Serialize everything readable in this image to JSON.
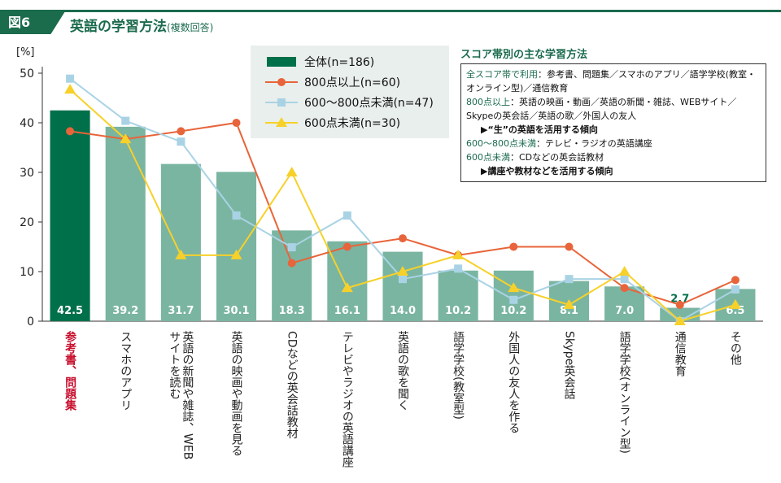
{
  "figure": {
    "tag": "図6",
    "title": "英語の学習方法",
    "subtitle": "(複数回答)"
  },
  "legend": {
    "items": [
      {
        "label": "全体(n=186)",
        "color": "#00704a",
        "marker": "bar"
      },
      {
        "label": "800点以上(n=60)",
        "color": "#e8643a",
        "marker": "circle"
      },
      {
        "label": "600〜800点未満(n=47)",
        "color": "#a9d3e5",
        "marker": "square"
      },
      {
        "label": "600点未満(n=30)",
        "color": "#f7d12a",
        "marker": "triangle"
      }
    ]
  },
  "notes": {
    "title": "スコア帯別の主な学習方法",
    "line1": "全スコア帯で利用",
    "line1_text": "：参考書、問題集／スマホのアプリ／語学学校(教室・オンライン型)／通信教育",
    "line2": "800点以上",
    "line2_text": "：英語の映画・動画／英語の新聞・雑誌、WEBサイト／Skypeの英会話／英語の歌／外国人の友人",
    "line2_arrow": "▶“生”の英語を活用する傾向",
    "line3": "600〜800点未満",
    "line3_text": "：テレビ・ラジオの英語講座",
    "line4": "600点未満",
    "line4_text": "：CDなどの英会話教材",
    "line4_arrow": "▶講座や教材などを活用する傾向"
  },
  "chart_data": {
    "type": "bar",
    "ylabel": "[%]",
    "ylim": [
      0,
      50
    ],
    "yticks": [
      0,
      10,
      20,
      30,
      40,
      50
    ],
    "categories": [
      "参考書、問題集",
      "スマホのアプリ",
      "英語の新聞や雑誌、WEBサイトを読む",
      "英語の映画や動画を見る",
      "CDなどの英会話教材",
      "テレビやラジオの英語講座",
      "英語の歌を聞く",
      "語学学校(教室型)",
      "外国人の友人を作る",
      "Skype英会話",
      "語学学校(オンライン型)",
      "通信教育",
      "その他"
    ],
    "highlight_category": "参考書、問題集",
    "highlight_color": "#c8102e",
    "series": [
      {
        "name": "全体(n=186)",
        "kind": "bar",
        "color": "#7ab5a1",
        "highlight_color": "#00704a",
        "values": [
          42.5,
          39.2,
          31.7,
          30.1,
          18.3,
          16.1,
          14.0,
          10.2,
          10.2,
          8.1,
          7.0,
          2.7,
          6.5
        ],
        "labels": [
          "42.5",
          "39.2",
          "31.7",
          "30.1",
          "18.3",
          "16.1",
          "14.0",
          "10.2",
          "10.2",
          "8.1",
          "7.0",
          "2.7",
          "6.5"
        ]
      },
      {
        "name": "800点以上(n=60)",
        "kind": "line",
        "marker": "circle",
        "color": "#e8643a",
        "values": [
          38.3,
          36.7,
          38.3,
          40.0,
          11.7,
          15.0,
          16.7,
          13.3,
          15.0,
          15.0,
          6.7,
          3.3,
          8.3
        ]
      },
      {
        "name": "600〜800点未満(n=47)",
        "kind": "line",
        "marker": "square",
        "color": "#a9d3e5",
        "values": [
          48.9,
          40.4,
          36.2,
          21.3,
          14.9,
          21.3,
          8.5,
          10.6,
          4.3,
          8.5,
          8.5,
          0.0,
          6.4
        ]
      },
      {
        "name": "600点未満(n=30)",
        "kind": "line",
        "marker": "triangle",
        "color": "#f7d12a",
        "values": [
          46.7,
          36.7,
          13.3,
          13.3,
          30.0,
          6.7,
          10.0,
          13.3,
          6.7,
          3.3,
          10.0,
          0.0,
          3.3
        ]
      }
    ]
  }
}
